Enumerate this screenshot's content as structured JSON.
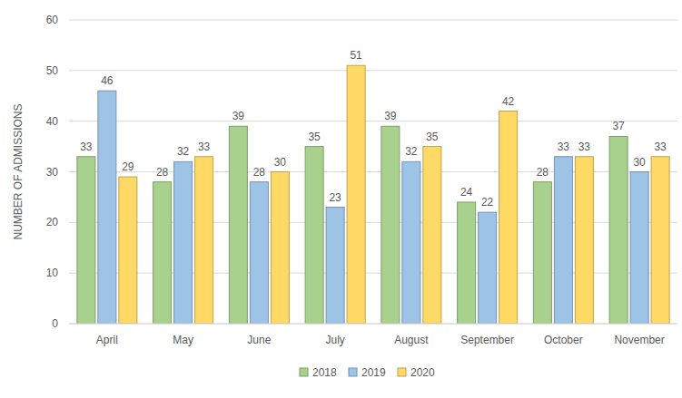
{
  "chart_data": {
    "type": "bar",
    "y_label": "NUMBER OF ADMISSIONS",
    "categories": [
      "April",
      "May",
      "June",
      "July",
      "August",
      "September",
      "October",
      "November"
    ],
    "series": [
      {
        "name": "2018",
        "color": "#a9d18e",
        "values": [
          33,
          28,
          39,
          35,
          39,
          24,
          28,
          37
        ]
      },
      {
        "name": "2019",
        "color": "#9dc3e6",
        "values": [
          46,
          32,
          28,
          23,
          32,
          22,
          33,
          30
        ]
      },
      {
        "name": "2020",
        "color": "#ffd966",
        "values": [
          29,
          33,
          30,
          51,
          35,
          42,
          33,
          33
        ]
      }
    ],
    "ylim": [
      0,
      60
    ],
    "yticks": [
      0,
      10,
      20,
      30,
      40,
      50,
      60
    ],
    "grid": true,
    "data_labels": true,
    "legend": "bottom"
  }
}
